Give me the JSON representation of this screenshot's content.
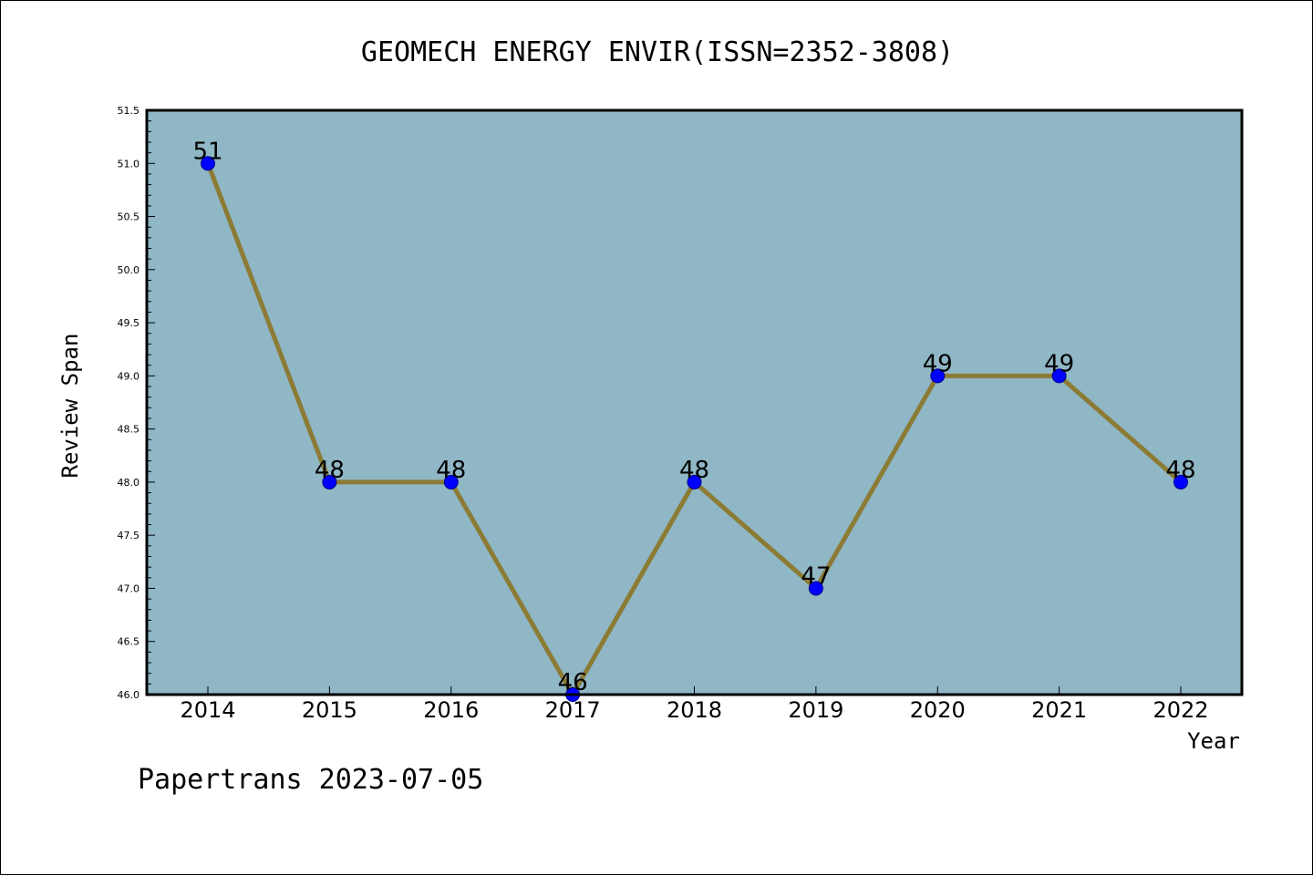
{
  "chart_data": {
    "type": "line",
    "title": "GEOMECH ENERGY ENVIR(ISSN=2352-3808)",
    "xlabel": "Year",
    "ylabel": "Review Span",
    "x": [
      "2014",
      "2015",
      "2016",
      "2017",
      "2018",
      "2019",
      "2020",
      "2021",
      "2022"
    ],
    "series": [
      {
        "values": [
          51,
          48,
          48,
          46,
          48,
          47,
          49,
          49,
          48
        ]
      }
    ],
    "data_labels": [
      "51",
      "48",
      "48",
      "46",
      "48",
      "47",
      "49",
      "49",
      "48"
    ],
    "ylim": [
      46.0,
      51.5
    ],
    "yticks": [
      "46.0",
      "46.5",
      "47.0",
      "47.5",
      "48.0",
      "48.5",
      "49.0",
      "49.5",
      "50.0",
      "50.5",
      "51.0",
      "51.5"
    ],
    "grid": false,
    "legend": "none",
    "colors": {
      "plot_background": "#8fb7c5",
      "line": "#8c7b35",
      "marker": "#0000ff"
    }
  },
  "footer": {
    "text": "Papertrans 2023-07-05"
  }
}
